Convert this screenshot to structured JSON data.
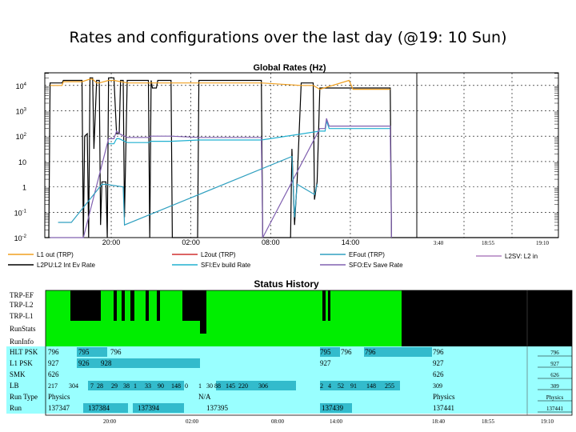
{
  "slide": {
    "title": "Rates and configurations over the last day (@19: 10 Sun)"
  },
  "chart_data": {
    "type": "line",
    "title": "Global Rates (Hz)",
    "yscale": "log",
    "ylim": [
      -2,
      4.5
    ],
    "y_ticks": [
      {
        "exp": 4,
        "base": "10",
        "sup": "4"
      },
      {
        "exp": 3,
        "base": "10",
        "sup": "3"
      },
      {
        "exp": 2,
        "base": "10",
        "sup": "2"
      },
      {
        "exp": 1,
        "base": "10",
        "sup": ""
      },
      {
        "exp": 0,
        "base": "1",
        "sup": ""
      },
      {
        "exp": -1,
        "base": "10",
        "sup": "-1"
      },
      {
        "exp": -2,
        "base": "10",
        "sup": "-2"
      }
    ],
    "x_ticks_main": [
      {
        "t": 20.0,
        "label": "20:00"
      },
      {
        "t": 26.0,
        "label": "02:00"
      },
      {
        "t": 32.0,
        "label": "08:00"
      },
      {
        "t": 38.0,
        "label": "14:00"
      }
    ],
    "x_ticks_right": [
      "3:40",
      "18:55",
      "19:10"
    ],
    "xlim": [
      15.0,
      43.0
    ],
    "grid": true,
    "legend": [
      {
        "label": "L1 out (TRP)",
        "color": "#f0a020"
      },
      {
        "label": "L2out (TRP)",
        "color": "#d03030"
      },
      {
        "label": "EFout (TRP)",
        "color": "#30a0c0"
      },
      {
        "label": "L2SV: L2 in",
        "color": "#b080c0"
      },
      {
        "label": "L2PU:L2 Int Ev Rate",
        "color": "#000000"
      },
      {
        "label": "SFI:Ev build Rate",
        "color": "#20b0d0"
      },
      {
        "label": "SFO:Ev Save Rate",
        "color": "#8060b0"
      }
    ],
    "series": [
      {
        "name": "L2PU:L2 Int Ev Rate",
        "color": "#000000",
        "points": [
          [
            15.0,
            -2
          ],
          [
            15.3,
            -2
          ],
          [
            15.4,
            4.1
          ],
          [
            16.3,
            4.1
          ],
          [
            16.4,
            4.2
          ],
          [
            17.8,
            4.2
          ],
          [
            17.9,
            -2
          ],
          [
            18.0,
            2.0
          ],
          [
            18.2,
            2.1
          ],
          [
            18.3,
            -2
          ],
          [
            18.4,
            4.3
          ],
          [
            18.6,
            4.3
          ],
          [
            18.7,
            1.5
          ],
          [
            18.9,
            4.2
          ],
          [
            19.1,
            4.2
          ],
          [
            19.2,
            -1.5
          ],
          [
            19.3,
            0.2
          ],
          [
            19.6,
            0.2
          ],
          [
            19.7,
            -2
          ],
          [
            19.8,
            4.3
          ],
          [
            20.2,
            4.3
          ],
          [
            20.4,
            2.1
          ],
          [
            20.6,
            2.1
          ],
          [
            20.7,
            4.2
          ],
          [
            20.9,
            4.2
          ],
          [
            21.0,
            -1.2
          ],
          [
            21.2,
            4.2
          ],
          [
            22.8,
            4.2
          ],
          [
            22.9,
            -2
          ],
          [
            23.0,
            4.2
          ],
          [
            23.1,
            3.9
          ],
          [
            23.4,
            3.9
          ],
          [
            23.5,
            4.2
          ],
          [
            24.5,
            4.2
          ],
          [
            24.6,
            -2
          ],
          [
            26.0,
            -2
          ],
          [
            26.5,
            -2
          ],
          [
            26.6,
            4.2
          ],
          [
            31.3,
            4.2
          ],
          [
            31.4,
            -2
          ],
          [
            33.5,
            -2
          ],
          [
            33.6,
            1.5
          ],
          [
            33.8,
            -1.5
          ],
          [
            34.0,
            0.3
          ],
          [
            34.3,
            4.1
          ],
          [
            35.2,
            4.1
          ],
          [
            35.3,
            -0.5
          ],
          [
            35.5,
            0.2
          ],
          [
            35.7,
            3.9
          ],
          [
            41.0,
            3.9
          ],
          [
            41.1,
            -2
          ],
          [
            43.0,
            -2
          ]
        ]
      },
      {
        "name": "L1 out (TRP)",
        "color": "#f0a020",
        "points": [
          [
            15.4,
            4.0
          ],
          [
            16.3,
            4.0
          ],
          [
            16.4,
            4.15
          ],
          [
            17.8,
            4.15
          ],
          [
            18.4,
            4.25
          ],
          [
            18.6,
            4.25
          ],
          [
            18.9,
            4.1
          ],
          [
            19.1,
            4.1
          ],
          [
            19.8,
            4.2
          ],
          [
            20.2,
            4.2
          ],
          [
            21.2,
            4.1
          ],
          [
            22.8,
            4.1
          ],
          [
            23.5,
            4.1
          ],
          [
            24.5,
            4.1
          ],
          [
            26.6,
            4.1
          ],
          [
            31.3,
            4.1
          ],
          [
            34.3,
            4.0
          ],
          [
            35.2,
            4.0
          ],
          [
            35.7,
            3.85
          ],
          [
            37.9,
            4.2
          ],
          [
            38.2,
            3.85
          ],
          [
            41.0,
            3.85
          ]
        ]
      },
      {
        "name": "SFI:Ev build Rate",
        "color": "#20b0d0",
        "points": [
          [
            19.8,
            1.7
          ],
          [
            20.2,
            1.7
          ],
          [
            20.4,
            1.9
          ],
          [
            20.6,
            1.9
          ],
          [
            21.2,
            1.75
          ],
          [
            22.8,
            1.75
          ],
          [
            23.0,
            1.8
          ],
          [
            24.5,
            1.8
          ],
          [
            26.6,
            1.85
          ],
          [
            31.3,
            1.85
          ],
          [
            35.7,
            2.2
          ],
          [
            36.1,
            2.2
          ],
          [
            36.2,
            2.6
          ],
          [
            36.4,
            2.3
          ],
          [
            41.0,
            2.3
          ]
        ]
      },
      {
        "name": "SFO:Ev Save Rate",
        "color": "#8060b0",
        "points": [
          [
            15.4,
            -2
          ],
          [
            17.9,
            -2
          ],
          [
            19.8,
            1.9
          ],
          [
            20.2,
            1.9
          ],
          [
            20.4,
            2.2
          ],
          [
            20.6,
            2.1
          ],
          [
            21.2,
            1.95
          ],
          [
            22.8,
            1.95
          ],
          [
            23.0,
            2.0
          ],
          [
            24.5,
            2.0
          ],
          [
            26.6,
            1.95
          ],
          [
            31.3,
            1.95
          ],
          [
            31.4,
            -2
          ],
          [
            35.7,
            2.3
          ],
          [
            36.1,
            2.3
          ],
          [
            36.2,
            2.7
          ],
          [
            36.4,
            2.4
          ],
          [
            41.0,
            2.4
          ],
          [
            41.1,
            -2
          ]
        ]
      },
      {
        "name": "EFout (TRP)",
        "color": "#30a0c0",
        "points": [
          [
            16.0,
            -1.4
          ],
          [
            17.0,
            -1.4
          ],
          [
            19.3,
            0.1
          ],
          [
            19.6,
            0.1
          ],
          [
            20.9,
            0.0
          ],
          [
            21.0,
            -1.5
          ],
          [
            33.6,
            1.2
          ],
          [
            33.8,
            -1.2
          ],
          [
            34.0,
            0.1
          ],
          [
            35.3,
            -0.3
          ],
          [
            35.5,
            0.1
          ]
        ]
      }
    ]
  },
  "status": {
    "title": "Status History",
    "status_rows": [
      "TRP-EF",
      "TRP-L2",
      "TRP-L1",
      "RunStats",
      "RunInfo"
    ],
    "colors": {
      "green": "#00ee00",
      "cyan": "#99ffff",
      "teal": "#33bbcc"
    },
    "rows": [
      {
        "label": "HLT PSK",
        "segs": [
          "796",
          "795",
          "796",
          "795",
          "796",
          "796",
          "796"
        ]
      },
      {
        "label": "L1 PSK",
        "segs": [
          "927",
          "926",
          "928",
          "927",
          "927"
        ]
      },
      {
        "label": "SMK",
        "segs": [
          "626",
          "626"
        ]
      },
      {
        "label": "LB",
        "segs": [
          "217",
          "304",
          "7",
          "28",
          "29",
          "38",
          "1",
          "33",
          "90",
          "148",
          "0",
          "1",
          "30",
          "88",
          "145",
          "220",
          "306",
          "2",
          "4",
          "52",
          "91",
          "148",
          "255",
          "309"
        ]
      },
      {
        "label": "Run Type",
        "segs": [
          "Physics",
          "N/A",
          "Physics"
        ]
      },
      {
        "label": "Run",
        "segs": [
          "137347",
          "137384",
          "137394",
          "137395",
          "137439",
          "137441"
        ]
      }
    ],
    "right_values": [
      "796",
      "927",
      "626",
      "309",
      "Physics",
      "137441"
    ],
    "x_labels": [
      "20:00",
      "02:00",
      "08:00",
      "14:00",
      "18:40",
      "18:55",
      "19:10"
    ]
  }
}
